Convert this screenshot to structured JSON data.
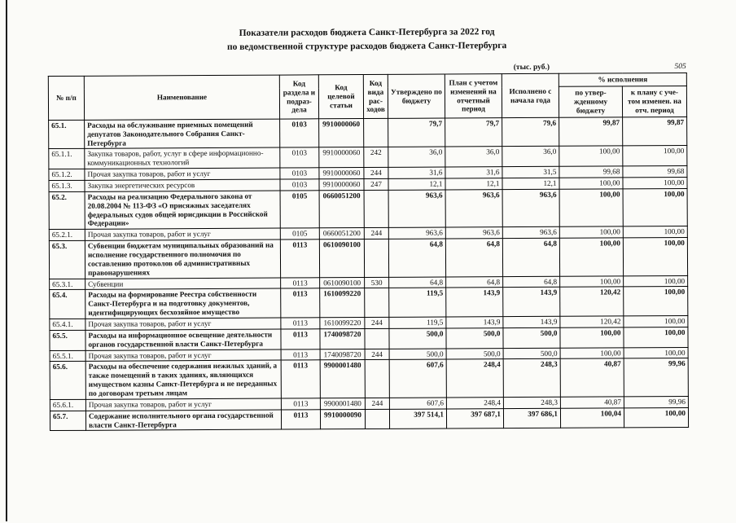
{
  "page": {
    "title_line1": "Показатели расходов бюджета Санкт-Петербурга за 2022 год",
    "title_line2": "по ведомственной структуре расходов бюджета Санкт-Петербурга",
    "units_note": "(тыс. руб.)",
    "page_number": "505"
  },
  "table": {
    "headers": {
      "num": "№ п/п",
      "name": "Наименование",
      "code_section": "Код раздела и подраз- дела",
      "code_target": "Код целевой статьи",
      "code_type": "Код вида рас- ходов",
      "approved": "Утверждено по бюджету",
      "plan": "План с учетом изменений на отчетный период",
      "executed": "Исполнено с начала года",
      "percent_group": "% исполнения",
      "percent_approved": "по утвер- жденному бюджету",
      "percent_plan": "к плану с уче- том изменен. на отч. период"
    },
    "columns_order": [
      "num",
      "name",
      "code_section",
      "code_target",
      "code_type",
      "approved",
      "plan",
      "executed",
      "pct_approved",
      "pct_plan"
    ],
    "rows": [
      {
        "bold": true,
        "num": "65.1.",
        "name": "Расходы на обслуживание приемных помещений депутатов Законодательного Собрания Санкт-Петербурга",
        "code_section": "0103",
        "code_target": "9910000060",
        "code_type": "",
        "approved": "79,7",
        "plan": "79,7",
        "executed": "79,6",
        "pct_approved": "99,87",
        "pct_plan": "99,87"
      },
      {
        "bold": false,
        "num": "65.1.1.",
        "name": "Закупка товаров, работ, услуг в сфере информационно-коммуникационных технологий",
        "code_section": "0103",
        "code_target": "9910000060",
        "code_type": "242",
        "approved": "36,0",
        "plan": "36,0",
        "executed": "36,0",
        "pct_approved": "100,00",
        "pct_plan": "100,00"
      },
      {
        "bold": false,
        "num": "65.1.2.",
        "name": "Прочая закупка товаров, работ и услуг",
        "code_section": "0103",
        "code_target": "9910000060",
        "code_type": "244",
        "approved": "31,6",
        "plan": "31,6",
        "executed": "31,5",
        "pct_approved": "99,68",
        "pct_plan": "99,68"
      },
      {
        "bold": false,
        "num": "65.1.3.",
        "name": "Закупка энергетических ресурсов",
        "code_section": "0103",
        "code_target": "9910000060",
        "code_type": "247",
        "approved": "12,1",
        "plan": "12,1",
        "executed": "12,1",
        "pct_approved": "100,00",
        "pct_plan": "100,00"
      },
      {
        "bold": true,
        "num": "65.2.",
        "name": "Расходы на реализацию Федерального закона от 20.08.2004 № 113-ФЗ «О присяжных заседателях федеральных судов общей юрисдикции в Российской Федерации»",
        "code_section": "0105",
        "code_target": "0660051200",
        "code_type": "",
        "approved": "963,6",
        "plan": "963,6",
        "executed": "963,6",
        "pct_approved": "100,00",
        "pct_plan": "100,00"
      },
      {
        "bold": false,
        "num": "65.2.1.",
        "name": "Прочая закупка товаров, работ и услуг",
        "code_section": "0105",
        "code_target": "0660051200",
        "code_type": "244",
        "approved": "963,6",
        "plan": "963,6",
        "executed": "963,6",
        "pct_approved": "100,00",
        "pct_plan": "100,00"
      },
      {
        "bold": true,
        "num": "65.3.",
        "name": "Субвенции бюджетам муниципальных образований на исполнение государственного полномочия по составлению протоколов об административных правонарушениях",
        "code_section": "0113",
        "code_target": "0610090100",
        "code_type": "",
        "approved": "64,8",
        "plan": "64,8",
        "executed": "64,8",
        "pct_approved": "100,00",
        "pct_plan": "100,00"
      },
      {
        "bold": false,
        "num": "65.3.1.",
        "name": "Субвенции",
        "code_section": "0113",
        "code_target": "0610090100",
        "code_type": "530",
        "approved": "64,8",
        "plan": "64,8",
        "executed": "64,8",
        "pct_approved": "100,00",
        "pct_plan": "100,00"
      },
      {
        "bold": true,
        "num": "65.4.",
        "name": "Расходы на формирование Реестра собственности Санкт-Петербурга и на подготовку документов, идентифицирующих бесхозяйное имущество",
        "code_section": "0113",
        "code_target": "1610099220",
        "code_type": "",
        "approved": "119,5",
        "plan": "143,9",
        "executed": "143,9",
        "pct_approved": "120,42",
        "pct_plan": "100,00"
      },
      {
        "bold": false,
        "num": "65.4.1.",
        "name": "Прочая закупка товаров, работ и услуг",
        "code_section": "0113",
        "code_target": "1610099220",
        "code_type": "244",
        "approved": "119,5",
        "plan": "143,9",
        "executed": "143,9",
        "pct_approved": "120,42",
        "pct_plan": "100,00"
      },
      {
        "bold": true,
        "num": "65.5.",
        "name": "Расходы на информационное освещение деятельности органов государственной власти Санкт-Петербурга",
        "code_section": "0113",
        "code_target": "1740098720",
        "code_type": "",
        "approved": "500,0",
        "plan": "500,0",
        "executed": "500,0",
        "pct_approved": "100,00",
        "pct_plan": "100,00"
      },
      {
        "bold": false,
        "num": "65.5.1.",
        "name": "Прочая закупка товаров, работ и услуг",
        "code_section": "0113",
        "code_target": "1740098720",
        "code_type": "244",
        "approved": "500,0",
        "plan": "500,0",
        "executed": "500,0",
        "pct_approved": "100,00",
        "pct_plan": "100,00"
      },
      {
        "bold": true,
        "num": "65.6.",
        "name": "Расходы на обеспечение содержания нежилых зданий, а также помещений в таких зданиях, являющихся имуществом казны Санкт-Петербурга и не переданных по договорам третьим лицам",
        "code_section": "0113",
        "code_target": "9900001480",
        "code_type": "",
        "approved": "607,6",
        "plan": "248,4",
        "executed": "248,3",
        "pct_approved": "40,87",
        "pct_plan": "99,96"
      },
      {
        "bold": false,
        "num": "65.6.1.",
        "name": "Прочая закупка товаров, работ и услуг",
        "code_section": "0113",
        "code_target": "9900001480",
        "code_type": "244",
        "approved": "607,6",
        "plan": "248,4",
        "executed": "248,3",
        "pct_approved": "40,87",
        "pct_plan": "99,96"
      },
      {
        "bold": true,
        "num": "65.7.",
        "name": "Содержание исполнительного органа государственной  власти Санкт-Петербурга",
        "code_section": "0113",
        "code_target": "9910000090",
        "code_type": "",
        "approved": "397 514,1",
        "plan": "397 687,1",
        "executed": "397 686,1",
        "pct_approved": "100,04",
        "pct_plan": "100,00"
      }
    ]
  }
}
